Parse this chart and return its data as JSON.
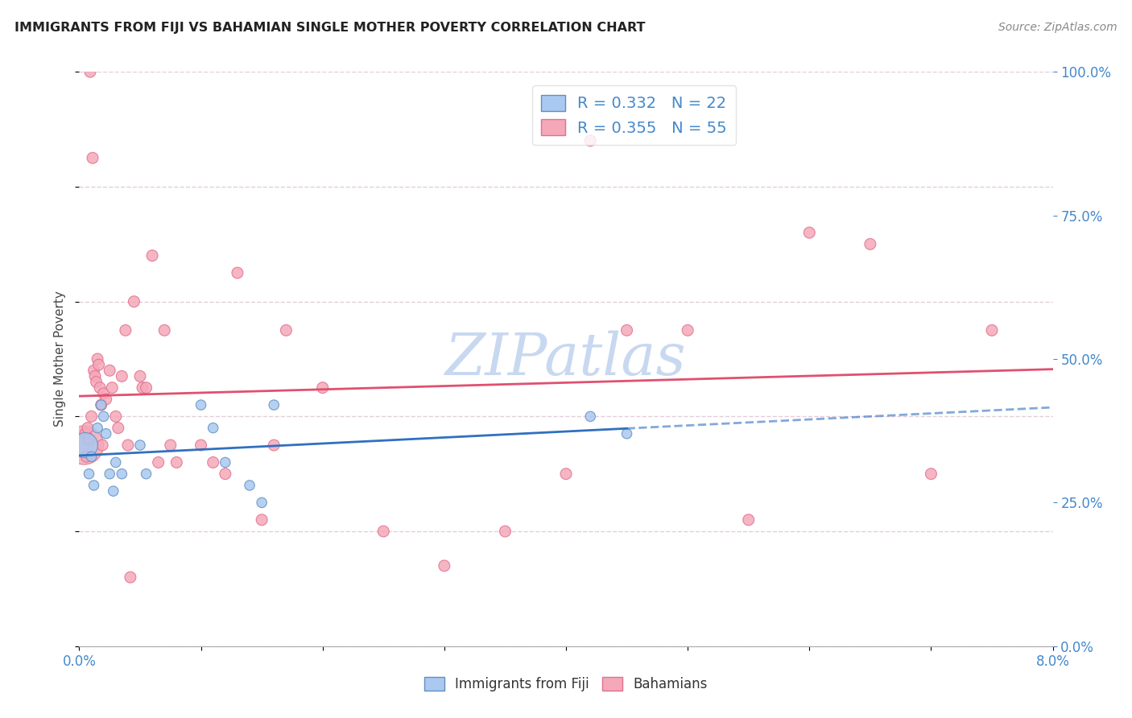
{
  "title": "IMMIGRANTS FROM FIJI VS BAHAMIAN SINGLE MOTHER POVERTY CORRELATION CHART",
  "source": "Source: ZipAtlas.com",
  "ylabel": "Single Mother Poverty",
  "legend_label1": "Immigrants from Fiji",
  "legend_label2": "Bahamians",
  "R1": 0.332,
  "N1": 22,
  "R2": 0.355,
  "N2": 55,
  "blue_scatter_color": "#aac8f0",
  "pink_scatter_color": "#f5a8b8",
  "blue_edge_color": "#6090c0",
  "pink_edge_color": "#e07090",
  "blue_line_color": "#3070c0",
  "pink_line_color": "#e05070",
  "axis_label_color": "#4488cc",
  "title_color": "#222222",
  "source_color": "#888888",
  "watermark_color": "#c8d8f0",
  "grid_color": "#e0c8d8",
  "xlim": [
    0.0,
    8.0
  ],
  "ylim": [
    0.0,
    100.0
  ],
  "yticks": [
    0,
    25,
    50,
    75,
    100
  ],
  "fiji_x": [
    0.05,
    0.08,
    0.1,
    0.12,
    0.15,
    0.18,
    0.2,
    0.22,
    0.25,
    0.28,
    0.3,
    0.35,
    0.5,
    0.55,
    1.0,
    1.1,
    1.2,
    1.4,
    1.5,
    1.6,
    4.2,
    4.5
  ],
  "fiji_y": [
    35,
    30,
    33,
    28,
    38,
    42,
    40,
    37,
    30,
    27,
    32,
    30,
    35,
    30,
    42,
    38,
    32,
    28,
    25,
    42,
    40,
    37
  ],
  "fiji_sizes": [
    500,
    80,
    80,
    80,
    80,
    80,
    80,
    80,
    80,
    80,
    80,
    80,
    80,
    80,
    80,
    80,
    80,
    80,
    80,
    80,
    80,
    80
  ],
  "bahamian_x": [
    0.04,
    0.05,
    0.06,
    0.07,
    0.08,
    0.09,
    0.1,
    0.11,
    0.12,
    0.13,
    0.14,
    0.15,
    0.16,
    0.17,
    0.18,
    0.19,
    0.2,
    0.22,
    0.25,
    0.27,
    0.3,
    0.32,
    0.35,
    0.38,
    0.4,
    0.42,
    0.45,
    0.5,
    0.52,
    0.55,
    0.6,
    0.65,
    0.7,
    0.75,
    0.8,
    1.0,
    1.1,
    1.2,
    1.3,
    1.5,
    1.6,
    1.7,
    2.0,
    2.5,
    3.0,
    3.5,
    4.0,
    4.2,
    4.5,
    5.0,
    5.5,
    6.0,
    6.5,
    7.0,
    7.5
  ],
  "bahamian_y": [
    35,
    37,
    33,
    38,
    36,
    100,
    40,
    85,
    48,
    47,
    46,
    50,
    49,
    45,
    42,
    35,
    44,
    43,
    48,
    45,
    40,
    38,
    47,
    55,
    35,
    12,
    60,
    47,
    45,
    45,
    68,
    32,
    55,
    35,
    32,
    35,
    32,
    30,
    65,
    22,
    35,
    55,
    45,
    20,
    14,
    20,
    30,
    88,
    55,
    55,
    22,
    72,
    70,
    30,
    55
  ],
  "bahamian_sizes": [
    1200,
    100,
    100,
    100,
    100,
    100,
    100,
    100,
    100,
    100,
    100,
    100,
    100,
    100,
    100,
    100,
    100,
    100,
    100,
    100,
    100,
    100,
    100,
    100,
    100,
    100,
    100,
    100,
    100,
    100,
    100,
    100,
    100,
    100,
    100,
    100,
    100,
    100,
    100,
    100,
    100,
    100,
    100,
    100,
    100,
    100,
    100,
    100,
    100,
    100,
    100,
    100,
    100,
    100,
    100
  ]
}
